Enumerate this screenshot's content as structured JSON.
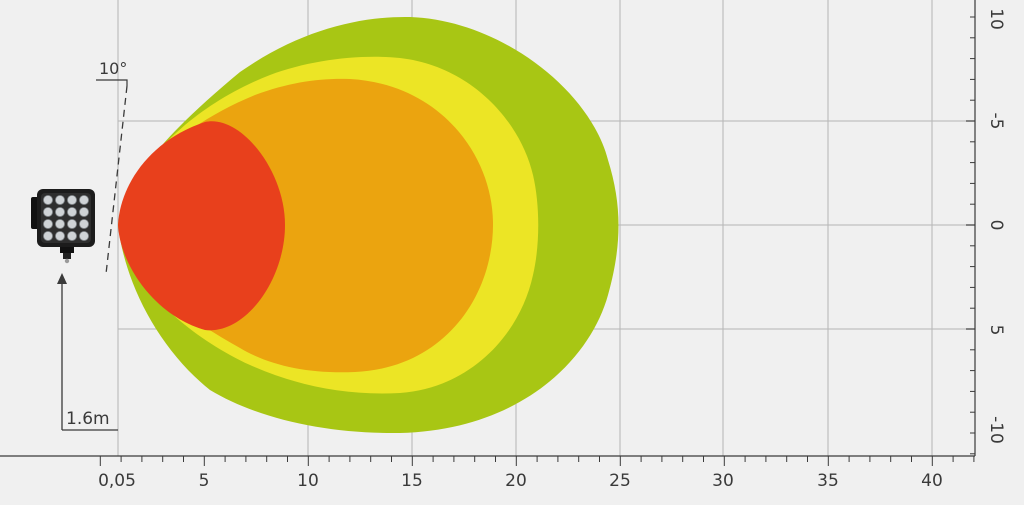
{
  "diagram": {
    "angle_label": "10°",
    "height_label": "1.6m",
    "x_ticks": [
      "0,05",
      "5",
      "10",
      "15",
      "20",
      "25",
      "30",
      "35",
      "40"
    ],
    "y_ticks": [
      "10",
      "-5",
      "0",
      "5",
      "-10"
    ],
    "colors": {
      "background": "#f0f0f0",
      "grid": "#b5b5b5",
      "zone_outer": "#a8c614",
      "zone_second": "#ece525",
      "zone_third": "#eba40f",
      "zone_inner": "#e8401c"
    },
    "lamp_icon": "work-light-lamp-icon",
    "arrow_icon": "arrow-up-icon"
  }
}
